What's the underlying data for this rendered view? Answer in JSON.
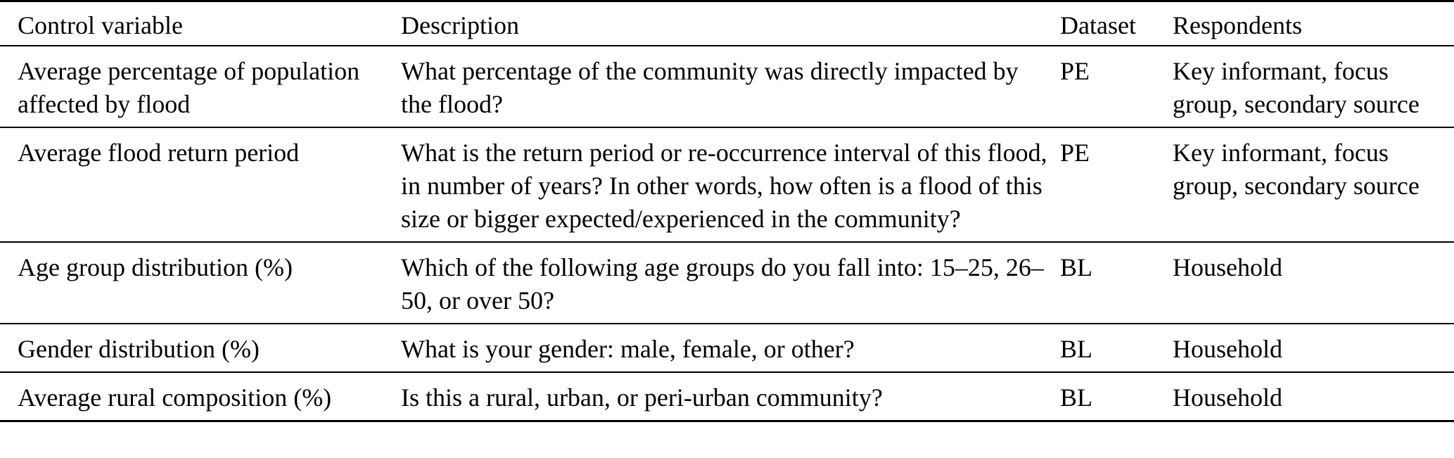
{
  "table": {
    "columns": [
      {
        "label": "Control variable"
      },
      {
        "label": "Description"
      },
      {
        "label": "Dataset"
      },
      {
        "label": "Respondents"
      }
    ],
    "rows": [
      {
        "control_variable": "Average percentage of population affected by flood",
        "description": "What percentage of the community was directly impacted by the flood?",
        "dataset": "PE",
        "respondents": "Key informant, focus group, secondary source"
      },
      {
        "control_variable": "Average flood return period",
        "description": "What is the return period or re-occurrence interval of this flood, in number of years? In other words, how often is a flood of this size or bigger expected/experienced in the community?",
        "dataset": "PE",
        "respondents": "Key informant, focus group, secondary source"
      },
      {
        "control_variable": "Age group distribution (%)",
        "description": "Which of the following age groups do you fall into: 15–25, 26–50, or over 50?",
        "dataset": "BL",
        "respondents": "Household"
      },
      {
        "control_variable": "Gender distribution (%)",
        "description": "What is your gender: male, female, or other?",
        "dataset": "BL",
        "respondents": "Household"
      },
      {
        "control_variable": "Average rural composition (%)",
        "description": "Is this a rural, urban, or peri-urban community?",
        "dataset": "BL",
        "respondents": "Household"
      }
    ]
  },
  "colors": {
    "text": "#000000",
    "background": "#ffffff",
    "rule": "#000000"
  }
}
